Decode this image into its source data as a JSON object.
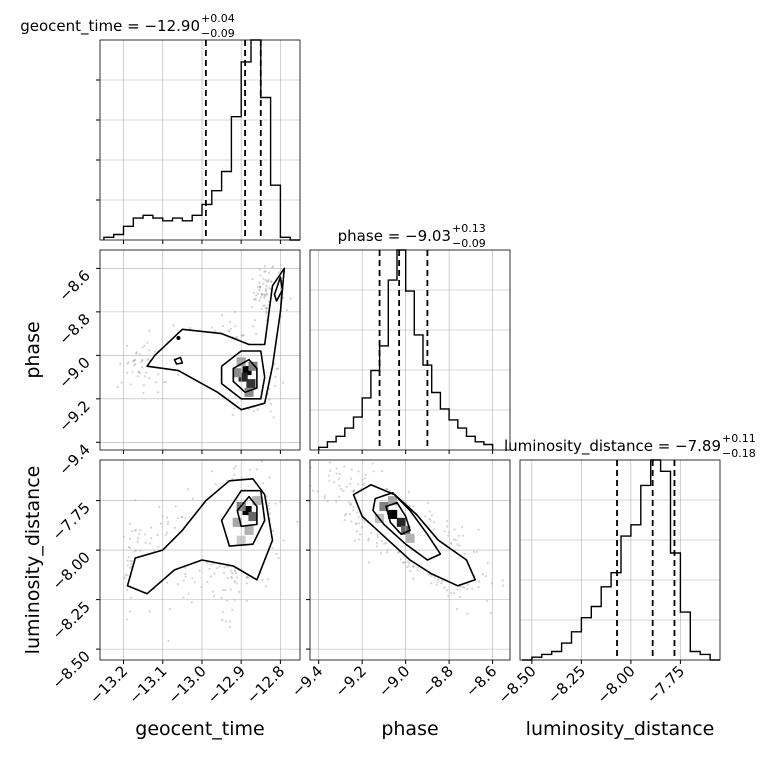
{
  "chart_data": {
    "type": "corner",
    "parameters": [
      "geocent_time",
      "phase",
      "luminosity_distance"
    ],
    "axis_labels": {
      "geocent_time": "geocent_time",
      "phase": "phase",
      "luminosity_distance": "luminosity_distance"
    },
    "titles": [
      {
        "param": "geocent_time",
        "text": "geocent_time = −12.90",
        "plus": "+0.04",
        "minus": "−0.09"
      },
      {
        "param": "phase",
        "text": "phase = −9.03",
        "plus": "+0.13",
        "minus": "−0.09"
      },
      {
        "param": "luminosity_distance",
        "text": "luminosity_distance = −7.89",
        "plus": "+0.11",
        "minus": "−0.18"
      }
    ],
    "ranges": {
      "geocent_time": [
        -13.26,
        -12.75
      ],
      "phase": [
        -9.44,
        -8.52
      ],
      "luminosity_distance": [
        -8.56,
        -7.55
      ]
    },
    "ticks": {
      "geocent_time": {
        "values": [
          -13.2,
          -13.1,
          -13.0,
          -12.9,
          -12.8
        ],
        "labels": [
          "−13.2",
          "−13.1",
          "−13.0",
          "−12.9",
          "−12.8"
        ]
      },
      "phase": {
        "values": [
          -9.4,
          -9.2,
          -9.0,
          -8.8,
          -8.6
        ],
        "labels": [
          "−9.4",
          "−9.2",
          "−9.0",
          "−8.8",
          "−8.6"
        ]
      },
      "luminosity_distance": {
        "values": [
          -8.5,
          -8.25,
          -8.0,
          -7.75
        ],
        "labels": [
          "−8.50",
          "−8.25",
          "−8.00",
          "−7.75"
        ]
      }
    },
    "quantile_lines": {
      "geocent_time": [
        -12.99,
        -12.89,
        -12.85
      ],
      "phase": [
        -9.12,
        -9.03,
        -8.9
      ],
      "luminosity_distance": [
        -8.07,
        -7.89,
        -7.78
      ]
    },
    "histograms": {
      "geocent_time": {
        "edges": [
          -13.25,
          -13.225,
          -13.2,
          -13.175,
          -13.15,
          -13.125,
          -13.1,
          -13.075,
          -13.05,
          -13.025,
          -13.0,
          -12.975,
          -12.95,
          -12.925,
          -12.9,
          -12.875,
          -12.85,
          -12.825,
          -12.8,
          -12.775,
          -12.75
        ],
        "counts": [
          1,
          2,
          5,
          8,
          9,
          8,
          7,
          8,
          7,
          9,
          13,
          18,
          25,
          45,
          65,
          73,
          52,
          20,
          1,
          0
        ]
      },
      "phase": {
        "edges": [
          -9.4,
          -9.36,
          -9.32,
          -9.28,
          -9.24,
          -9.2,
          -9.16,
          -9.12,
          -9.08,
          -9.04,
          -9.0,
          -8.96,
          -8.92,
          -8.88,
          -8.84,
          -8.8,
          -8.76,
          -8.72,
          -8.68,
          -8.64,
          -8.6
        ],
        "counts": [
          1,
          3,
          5,
          8,
          12,
          19,
          29,
          38,
          62,
          73,
          58,
          42,
          31,
          21,
          15,
          11,
          8,
          5,
          3,
          2
        ]
      },
      "luminosity_distance": {
        "edges": [
          -8.55,
          -8.5,
          -8.45,
          -8.4,
          -8.35,
          -8.3,
          -8.25,
          -8.2,
          -8.15,
          -8.1,
          -8.05,
          -8.0,
          -7.95,
          -7.9,
          -7.85,
          -7.8,
          -7.75,
          -7.7,
          -7.65,
          -7.6,
          -7.55
        ],
        "counts": [
          0,
          1,
          2,
          3,
          6,
          10,
          15,
          19,
          26,
          31,
          44,
          48,
          62,
          71,
          67,
          38,
          17,
          3,
          2,
          0
        ]
      }
    },
    "densities": {
      "phase_vs_geocent_time": {
        "peak": [
          -12.88,
          -9.08
        ],
        "secondary": [
          -12.82,
          -8.7
        ],
        "cells": [
          [
            -12.885,
            -9.07,
            1.0
          ],
          [
            -12.895,
            -9.1,
            0.85
          ],
          [
            -12.875,
            -9.13,
            0.8
          ],
          [
            -12.91,
            -9.08,
            0.45
          ],
          [
            -12.87,
            -9.05,
            0.5
          ],
          [
            -12.9,
            -9.03,
            0.35
          ],
          [
            -12.88,
            -9.17,
            0.45
          ]
        ]
      },
      "luminosity_distance_vs_geocent_time": {
        "peak": [
          -12.88,
          -7.8
        ],
        "cells": [
          [
            -12.885,
            -7.8,
            1.0
          ],
          [
            -12.9,
            -7.78,
            0.5
          ],
          [
            -12.87,
            -7.83,
            0.6
          ],
          [
            -12.91,
            -7.86,
            0.35
          ],
          [
            -12.88,
            -7.9,
            0.3
          ],
          [
            -12.86,
            -7.75,
            0.3
          ],
          [
            -12.9,
            -7.95,
            0.2
          ]
        ]
      },
      "luminosity_distance_vs_phase": {
        "peak": [
          -9.04,
          -7.83
        ],
        "cells": [
          [
            -9.06,
            -7.82,
            1.0
          ],
          [
            -9.02,
            -7.86,
            0.85
          ],
          [
            -9.0,
            -7.9,
            0.6
          ],
          [
            -9.1,
            -7.78,
            0.5
          ],
          [
            -9.06,
            -7.75,
            0.35
          ],
          [
            -8.98,
            -7.94,
            0.3
          ],
          [
            -9.12,
            -7.84,
            0.25
          ]
        ]
      }
    },
    "grid": true,
    "colors": {
      "line": "#000000",
      "scatter": "#9e9e9e",
      "grid": "#b0b0b0"
    }
  }
}
